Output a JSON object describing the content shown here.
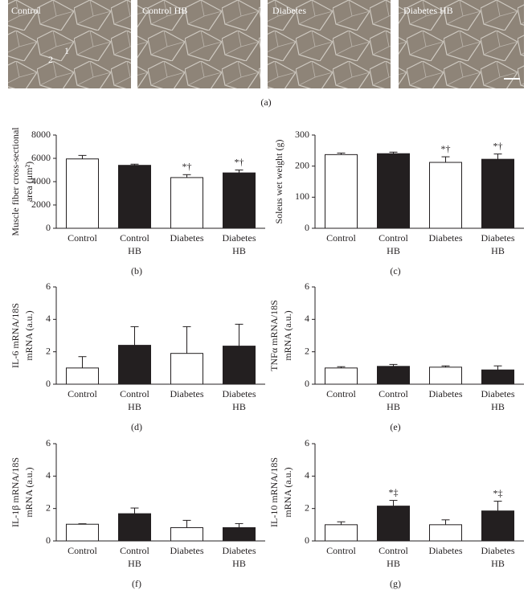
{
  "images": {
    "panels": [
      "Control",
      "Control HB",
      "Diabetes",
      "Diabetes HB"
    ],
    "markers": [
      "1",
      "2"
    ],
    "label": "(a)"
  },
  "chart_data": [
    {
      "type": "bar",
      "panel_label": "(b)",
      "ylabel": [
        "Muscle fiber cross-sectional",
        "area (μm²)"
      ],
      "categories": [
        [
          "Control"
        ],
        [
          "Control",
          "HB"
        ],
        [
          "Diabetes"
        ],
        [
          "Diabetes",
          "HB"
        ]
      ],
      "values": [
        5950,
        5400,
        4350,
        4750
      ],
      "errors": [
        300,
        100,
        250,
        250
      ],
      "colors": [
        "#ffffff",
        "#231f20",
        "#ffffff",
        "#231f20"
      ],
      "annotations": [
        null,
        null,
        "*†",
        "*†"
      ],
      "ylim": [
        0,
        8000
      ],
      "yticks": [
        0,
        2000,
        4000,
        6000,
        8000
      ]
    },
    {
      "type": "bar",
      "panel_label": "(c)",
      "ylabel": [
        "Soleus wet weight (g)"
      ],
      "categories": [
        [
          "Control"
        ],
        [
          "Control",
          "HB"
        ],
        [
          "Diabetes"
        ],
        [
          "Diabetes",
          "HB"
        ]
      ],
      "values": [
        237,
        240,
        212,
        222
      ],
      "errors": [
        5,
        5,
        18,
        17
      ],
      "colors": [
        "#ffffff",
        "#231f20",
        "#ffffff",
        "#231f20"
      ],
      "annotations": [
        null,
        null,
        "*†",
        "*†"
      ],
      "ylim": [
        0,
        300
      ],
      "yticks": [
        0,
        100,
        200,
        300
      ]
    },
    {
      "type": "bar",
      "panel_label": "(d)",
      "ylabel": [
        "IL-6 mRNA/18S",
        "mRNA (a.u.)"
      ],
      "categories": [
        [
          "Control"
        ],
        [
          "Control",
          "HB"
        ],
        [
          "Diabetes"
        ],
        [
          "Diabetes",
          "HB"
        ]
      ],
      "values": [
        1.0,
        2.4,
        1.9,
        2.35
      ],
      "errors": [
        0.7,
        1.15,
        1.65,
        1.35
      ],
      "colors": [
        "#ffffff",
        "#231f20",
        "#ffffff",
        "#231f20"
      ],
      "ylim": [
        0,
        6
      ],
      "yticks": [
        0,
        2,
        4,
        6
      ]
    },
    {
      "type": "bar",
      "panel_label": "(e)",
      "ylabel": [
        "TNFα mRNA/18S",
        "mRNA (a.u.)"
      ],
      "categories": [
        [
          "Control"
        ],
        [
          "Control",
          "HB"
        ],
        [
          "Diabetes"
        ],
        [
          "Diabetes",
          "HB"
        ]
      ],
      "values": [
        1.0,
        1.1,
        1.05,
        0.88
      ],
      "errors": [
        0.08,
        0.12,
        0.08,
        0.25
      ],
      "colors": [
        "#ffffff",
        "#231f20",
        "#ffffff",
        "#231f20"
      ],
      "ylim": [
        0,
        6
      ],
      "yticks": [
        0,
        2,
        4,
        6
      ]
    },
    {
      "type": "bar",
      "panel_label": "(f)",
      "ylabel": [
        "IL-1β mRNA/18S",
        "mRNA (a.u.)"
      ],
      "categories": [
        [
          "Control"
        ],
        [
          "Control",
          "HB"
        ],
        [
          "Diabetes"
        ],
        [
          "Diabetes",
          "HB"
        ]
      ],
      "values": [
        1.03,
        1.68,
        0.82,
        0.82
      ],
      "errors": [
        0.03,
        0.35,
        0.45,
        0.25
      ],
      "colors": [
        "#ffffff",
        "#231f20",
        "#ffffff",
        "#231f20"
      ],
      "ylim": [
        0,
        6
      ],
      "yticks": [
        0,
        2,
        4,
        6
      ]
    },
    {
      "type": "bar",
      "panel_label": "(g)",
      "ylabel": [
        "IL-10 mRNA/18S",
        "mRNA (a.u.)"
      ],
      "categories": [
        [
          "Control"
        ],
        [
          "Control",
          "HB"
        ],
        [
          "Diabetes"
        ],
        [
          "Diabetes",
          "HB"
        ]
      ],
      "values": [
        1.0,
        2.15,
        1.0,
        1.85
      ],
      "errors": [
        0.18,
        0.35,
        0.3,
        0.6
      ],
      "colors": [
        "#ffffff",
        "#231f20",
        "#ffffff",
        "#231f20"
      ],
      "annotations": [
        null,
        "*‡",
        null,
        "*‡"
      ],
      "ylim": [
        0,
        6
      ],
      "yticks": [
        0,
        2,
        4,
        6
      ]
    }
  ]
}
